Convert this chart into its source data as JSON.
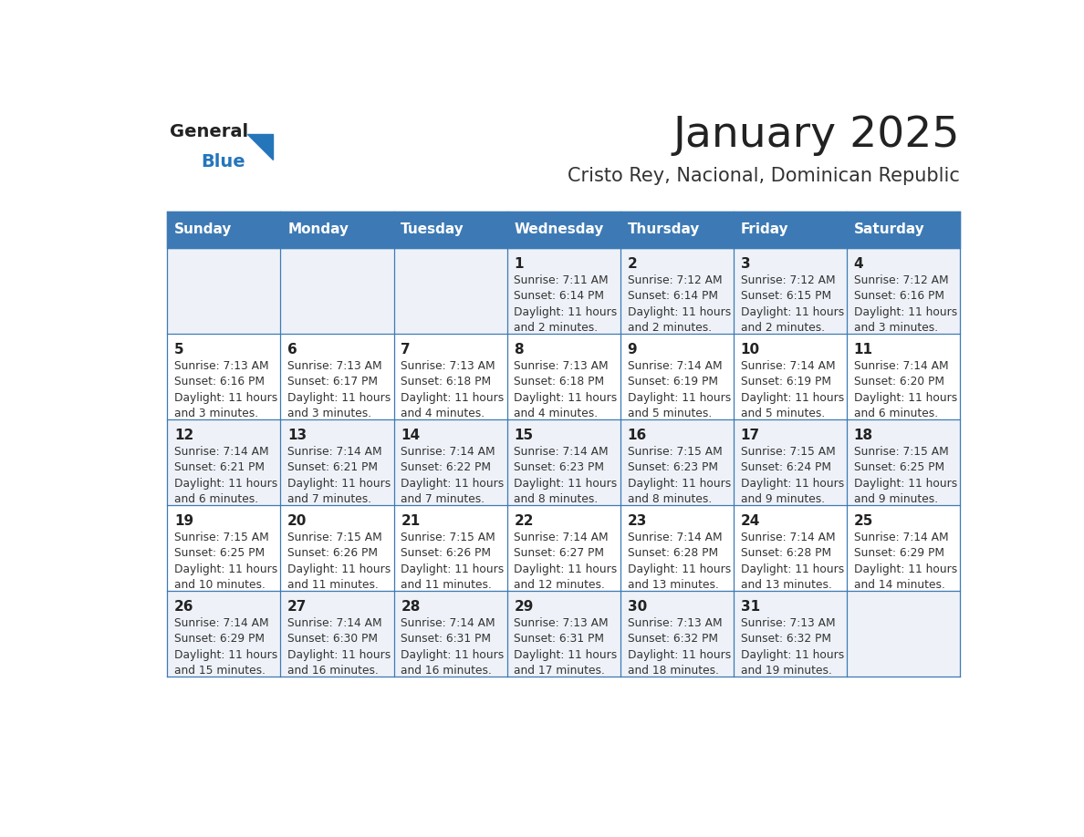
{
  "title": "January 2025",
  "subtitle": "Cristo Rey, Nacional, Dominican Republic",
  "days_of_week": [
    "Sunday",
    "Monday",
    "Tuesday",
    "Wednesday",
    "Thursday",
    "Friday",
    "Saturday"
  ],
  "header_bg": "#3d7ab5",
  "header_text": "#FFFFFF",
  "row_bg_odd": "#eef2f8",
  "row_bg_even": "#FFFFFF",
  "cell_border_color": "#3d7ab5",
  "day_number_color": "#222222",
  "cell_text_color": "#333333",
  "title_color": "#222222",
  "subtitle_color": "#333333",
  "logo_general_color": "#222222",
  "logo_blue_color": "#2575bb",
  "logo_triangle_color": "#2575bb",
  "calendar": [
    [
      {
        "day": "",
        "sunrise": "",
        "sunset": "",
        "daylight_l1": "",
        "daylight_l2": ""
      },
      {
        "day": "",
        "sunrise": "",
        "sunset": "",
        "daylight_l1": "",
        "daylight_l2": ""
      },
      {
        "day": "",
        "sunrise": "",
        "sunset": "",
        "daylight_l1": "",
        "daylight_l2": ""
      },
      {
        "day": "1",
        "sunrise": "Sunrise: 7:11 AM",
        "sunset": "Sunset: 6:14 PM",
        "daylight_l1": "Daylight: 11 hours",
        "daylight_l2": "and 2 minutes."
      },
      {
        "day": "2",
        "sunrise": "Sunrise: 7:12 AM",
        "sunset": "Sunset: 6:14 PM",
        "daylight_l1": "Daylight: 11 hours",
        "daylight_l2": "and 2 minutes."
      },
      {
        "day": "3",
        "sunrise": "Sunrise: 7:12 AM",
        "sunset": "Sunset: 6:15 PM",
        "daylight_l1": "Daylight: 11 hours",
        "daylight_l2": "and 2 minutes."
      },
      {
        "day": "4",
        "sunrise": "Sunrise: 7:12 AM",
        "sunset": "Sunset: 6:16 PM",
        "daylight_l1": "Daylight: 11 hours",
        "daylight_l2": "and 3 minutes."
      }
    ],
    [
      {
        "day": "5",
        "sunrise": "Sunrise: 7:13 AM",
        "sunset": "Sunset: 6:16 PM",
        "daylight_l1": "Daylight: 11 hours",
        "daylight_l2": "and 3 minutes."
      },
      {
        "day": "6",
        "sunrise": "Sunrise: 7:13 AM",
        "sunset": "Sunset: 6:17 PM",
        "daylight_l1": "Daylight: 11 hours",
        "daylight_l2": "and 3 minutes."
      },
      {
        "day": "7",
        "sunrise": "Sunrise: 7:13 AM",
        "sunset": "Sunset: 6:18 PM",
        "daylight_l1": "Daylight: 11 hours",
        "daylight_l2": "and 4 minutes."
      },
      {
        "day": "8",
        "sunrise": "Sunrise: 7:13 AM",
        "sunset": "Sunset: 6:18 PM",
        "daylight_l1": "Daylight: 11 hours",
        "daylight_l2": "and 4 minutes."
      },
      {
        "day": "9",
        "sunrise": "Sunrise: 7:14 AM",
        "sunset": "Sunset: 6:19 PM",
        "daylight_l1": "Daylight: 11 hours",
        "daylight_l2": "and 5 minutes."
      },
      {
        "day": "10",
        "sunrise": "Sunrise: 7:14 AM",
        "sunset": "Sunset: 6:19 PM",
        "daylight_l1": "Daylight: 11 hours",
        "daylight_l2": "and 5 minutes."
      },
      {
        "day": "11",
        "sunrise": "Sunrise: 7:14 AM",
        "sunset": "Sunset: 6:20 PM",
        "daylight_l1": "Daylight: 11 hours",
        "daylight_l2": "and 6 minutes."
      }
    ],
    [
      {
        "day": "12",
        "sunrise": "Sunrise: 7:14 AM",
        "sunset": "Sunset: 6:21 PM",
        "daylight_l1": "Daylight: 11 hours",
        "daylight_l2": "and 6 minutes."
      },
      {
        "day": "13",
        "sunrise": "Sunrise: 7:14 AM",
        "sunset": "Sunset: 6:21 PM",
        "daylight_l1": "Daylight: 11 hours",
        "daylight_l2": "and 7 minutes."
      },
      {
        "day": "14",
        "sunrise": "Sunrise: 7:14 AM",
        "sunset": "Sunset: 6:22 PM",
        "daylight_l1": "Daylight: 11 hours",
        "daylight_l2": "and 7 minutes."
      },
      {
        "day": "15",
        "sunrise": "Sunrise: 7:14 AM",
        "sunset": "Sunset: 6:23 PM",
        "daylight_l1": "Daylight: 11 hours",
        "daylight_l2": "and 8 minutes."
      },
      {
        "day": "16",
        "sunrise": "Sunrise: 7:15 AM",
        "sunset": "Sunset: 6:23 PM",
        "daylight_l1": "Daylight: 11 hours",
        "daylight_l2": "and 8 minutes."
      },
      {
        "day": "17",
        "sunrise": "Sunrise: 7:15 AM",
        "sunset": "Sunset: 6:24 PM",
        "daylight_l1": "Daylight: 11 hours",
        "daylight_l2": "and 9 minutes."
      },
      {
        "day": "18",
        "sunrise": "Sunrise: 7:15 AM",
        "sunset": "Sunset: 6:25 PM",
        "daylight_l1": "Daylight: 11 hours",
        "daylight_l2": "and 9 minutes."
      }
    ],
    [
      {
        "day": "19",
        "sunrise": "Sunrise: 7:15 AM",
        "sunset": "Sunset: 6:25 PM",
        "daylight_l1": "Daylight: 11 hours",
        "daylight_l2": "and 10 minutes."
      },
      {
        "day": "20",
        "sunrise": "Sunrise: 7:15 AM",
        "sunset": "Sunset: 6:26 PM",
        "daylight_l1": "Daylight: 11 hours",
        "daylight_l2": "and 11 minutes."
      },
      {
        "day": "21",
        "sunrise": "Sunrise: 7:15 AM",
        "sunset": "Sunset: 6:26 PM",
        "daylight_l1": "Daylight: 11 hours",
        "daylight_l2": "and 11 minutes."
      },
      {
        "day": "22",
        "sunrise": "Sunrise: 7:14 AM",
        "sunset": "Sunset: 6:27 PM",
        "daylight_l1": "Daylight: 11 hours",
        "daylight_l2": "and 12 minutes."
      },
      {
        "day": "23",
        "sunrise": "Sunrise: 7:14 AM",
        "sunset": "Sunset: 6:28 PM",
        "daylight_l1": "Daylight: 11 hours",
        "daylight_l2": "and 13 minutes."
      },
      {
        "day": "24",
        "sunrise": "Sunrise: 7:14 AM",
        "sunset": "Sunset: 6:28 PM",
        "daylight_l1": "Daylight: 11 hours",
        "daylight_l2": "and 13 minutes."
      },
      {
        "day": "25",
        "sunrise": "Sunrise: 7:14 AM",
        "sunset": "Sunset: 6:29 PM",
        "daylight_l1": "Daylight: 11 hours",
        "daylight_l2": "and 14 minutes."
      }
    ],
    [
      {
        "day": "26",
        "sunrise": "Sunrise: 7:14 AM",
        "sunset": "Sunset: 6:29 PM",
        "daylight_l1": "Daylight: 11 hours",
        "daylight_l2": "and 15 minutes."
      },
      {
        "day": "27",
        "sunrise": "Sunrise: 7:14 AM",
        "sunset": "Sunset: 6:30 PM",
        "daylight_l1": "Daylight: 11 hours",
        "daylight_l2": "and 16 minutes."
      },
      {
        "day": "28",
        "sunrise": "Sunrise: 7:14 AM",
        "sunset": "Sunset: 6:31 PM",
        "daylight_l1": "Daylight: 11 hours",
        "daylight_l2": "and 16 minutes."
      },
      {
        "day": "29",
        "sunrise": "Sunrise: 7:13 AM",
        "sunset": "Sunset: 6:31 PM",
        "daylight_l1": "Daylight: 11 hours",
        "daylight_l2": "and 17 minutes."
      },
      {
        "day": "30",
        "sunrise": "Sunrise: 7:13 AM",
        "sunset": "Sunset: 6:32 PM",
        "daylight_l1": "Daylight: 11 hours",
        "daylight_l2": "and 18 minutes."
      },
      {
        "day": "31",
        "sunrise": "Sunrise: 7:13 AM",
        "sunset": "Sunset: 6:32 PM",
        "daylight_l1": "Daylight: 11 hours",
        "daylight_l2": "and 19 minutes."
      },
      {
        "day": "",
        "sunrise": "",
        "sunset": "",
        "daylight_l1": "",
        "daylight_l2": ""
      }
    ]
  ]
}
